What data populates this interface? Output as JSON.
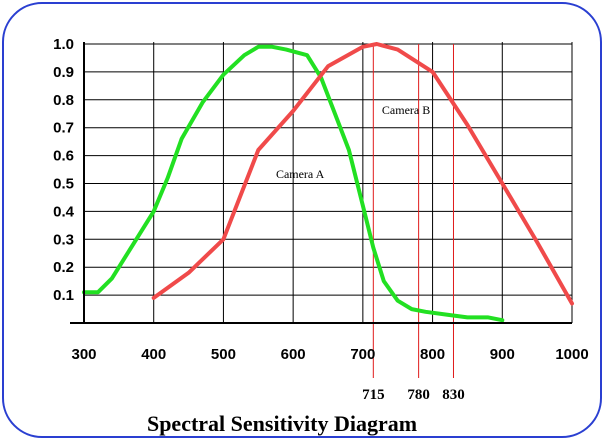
{
  "chart_data": {
    "type": "line",
    "title": "Spectral Sensitivity Diagram",
    "xlabel": "",
    "ylabel": "",
    "xlim": [
      300,
      1000
    ],
    "ylim": [
      0,
      1.0
    ],
    "x_ticks": [
      "300",
      "400",
      "500",
      "600",
      "700",
      "800",
      "900",
      "1000"
    ],
    "y_ticks": [
      "0.1",
      "0.2",
      "0.3",
      "0.4",
      "0.5",
      "0.6",
      "0.7",
      "0.8",
      "0.9",
      "1.0"
    ],
    "grid": true,
    "series": [
      {
        "name": "Camera A",
        "color": "#22e022",
        "x": [
          300,
          320,
          340,
          370,
          400,
          420,
          440,
          470,
          500,
          530,
          550,
          570,
          590,
          620,
          640,
          660,
          680,
          700,
          715,
          730,
          750,
          770,
          790,
          820,
          850,
          880,
          900
        ],
        "y": [
          0.11,
          0.11,
          0.16,
          0.28,
          0.4,
          0.52,
          0.66,
          0.79,
          0.89,
          0.96,
          0.99,
          0.99,
          0.98,
          0.96,
          0.88,
          0.75,
          0.62,
          0.42,
          0.27,
          0.15,
          0.08,
          0.05,
          0.04,
          0.03,
          0.02,
          0.02,
          0.01
        ]
      },
      {
        "name": "Camera B",
        "color": "#f04a4a",
        "x": [
          400,
          450,
          500,
          550,
          600,
          650,
          700,
          720,
          750,
          800,
          850,
          900,
          950,
          1000
        ],
        "y": [
          0.09,
          0.18,
          0.3,
          0.62,
          0.76,
          0.92,
          0.99,
          1.0,
          0.98,
          0.9,
          0.71,
          0.5,
          0.29,
          0.07
        ]
      }
    ],
    "reference_lines": [
      {
        "x": 715,
        "label": "715"
      },
      {
        "x": 780,
        "label": "780"
      },
      {
        "x": 830,
        "label": "830"
      }
    ],
    "annotation_color": "#e01b1b"
  }
}
